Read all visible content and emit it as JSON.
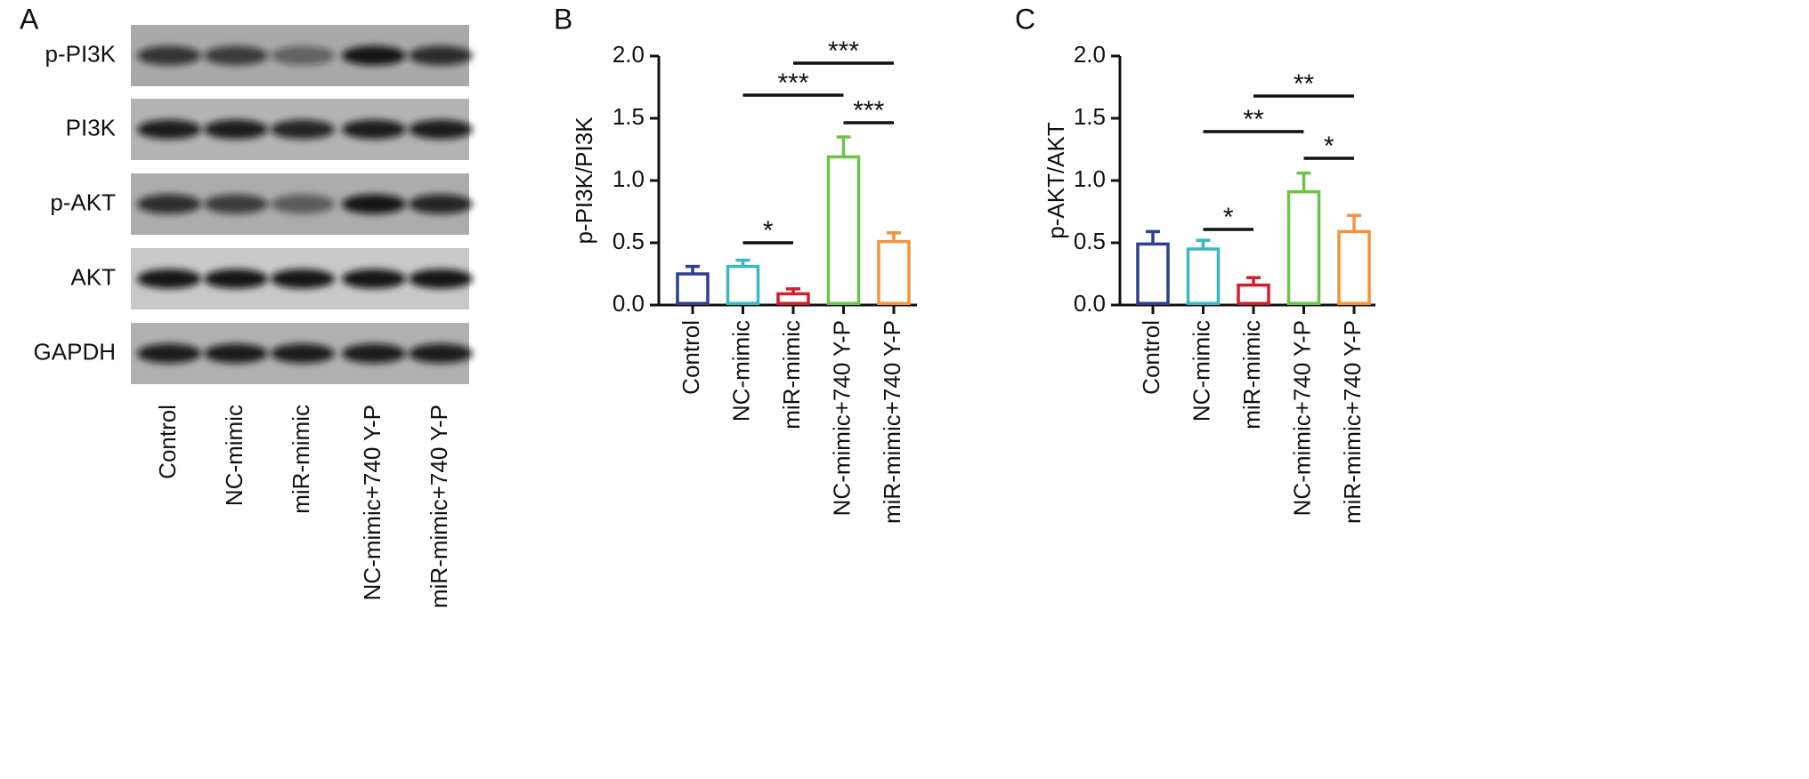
{
  "blot": {
    "panel_label": "A",
    "rows": [
      "p-PI3K",
      "PI3K",
      "p-AKT",
      "AKT",
      "GAPDH"
    ],
    "lanes": [
      "Control",
      "NC-mimic",
      "miR-mimic",
      "NC-mimic+740 Y-P",
      "miR-mimic+740 Y-P"
    ]
  },
  "chart_data": [
    {
      "type": "bar",
      "panel_label": "B",
      "y_label": "p-PI3K/PI3K",
      "categories": [
        "Control",
        "NC-mimic",
        "miR-mimic",
        "NC-mimic+740 Y-P",
        "miR-mimic+740 Y-P"
      ],
      "values": [
        0.25,
        0.31,
        0.09,
        1.19,
        0.51
      ],
      "errors": [
        0.06,
        0.05,
        0.04,
        0.16,
        0.07
      ],
      "colors": [
        "#2e3f8f",
        "#3ab7c0",
        "#d11f2e",
        "#6cc24a",
        "#f5923e"
      ],
      "ylim": [
        0,
        2
      ],
      "yticks": [
        {
          "value": 0,
          "label": "0.0"
        },
        0.5,
        {
          "value": 1,
          "label": "1.0"
        },
        1.5,
        {
          "value": 2,
          "label": "2.0"
        }
      ],
      "annotations": [
        {
          "text": "*",
          "between": [
            "NC-mimic",
            "miR-mimic"
          ]
        },
        {
          "text": "***",
          "between": [
            "NC-mimic",
            "NC-mimic+740 Y-P"
          ]
        },
        {
          "text": "***",
          "between": [
            "miR-mimic",
            "miR-mimic+740 Y-P"
          ]
        },
        {
          "text": "***",
          "between": [
            "NC-mimic+740 Y-P",
            "miR-mimic+740 Y-P"
          ]
        }
      ]
    },
    {
      "type": "bar",
      "panel_label": "C",
      "y_label": "p-AKT/AKT",
      "categories": [
        "Control",
        "NC-mimic",
        "miR-mimic",
        "NC-mimic+740 Y-P",
        "miR-mimic+740 Y-P"
      ],
      "values": [
        0.49,
        0.45,
        0.16,
        0.91,
        0.59
      ],
      "errors": [
        0.1,
        0.07,
        0.06,
        0.15,
        0.13
      ],
      "colors": [
        "#2e3f8f",
        "#3ab7c0",
        "#d11f2e",
        "#6cc24a",
        "#f5923e"
      ],
      "ylim": [
        0,
        2
      ],
      "yticks": [
        {
          "value": 0,
          "label": "0.0"
        },
        0.5,
        {
          "value": 1,
          "label": "1.0"
        },
        1.5,
        {
          "value": 2,
          "label": "2.0"
        }
      ],
      "annotations": [
        {
          "text": "*",
          "between": [
            "NC-mimic",
            "miR-mimic"
          ]
        },
        {
          "text": "**",
          "between": [
            "NC-mimic",
            "NC-mimic+740 Y-P"
          ]
        },
        {
          "text": "**",
          "between": [
            "miR-mimic",
            "miR-mimic+740 Y-P"
          ]
        },
        {
          "text": "*",
          "between": [
            "NC-mimic+740 Y-P",
            "miR-mimic+740 Y-P"
          ]
        }
      ]
    }
  ]
}
